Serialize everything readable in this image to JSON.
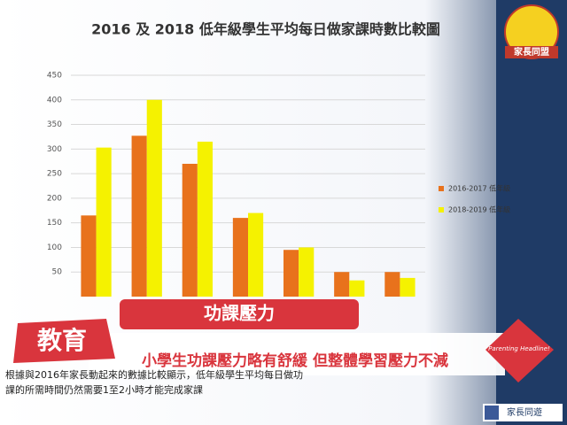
{
  "chart_data": {
    "type": "bar",
    "title": "2016 及 2018 低年級學生平均每日做家課時數比較圖",
    "categories": [
      null,
      null,
      null,
      null,
      null,
      null,
      null
    ],
    "series": [
      {
        "name": "2016-2017 低年級",
        "color": "#e8721c",
        "values": [
          165,
          327,
          270,
          160,
          95,
          50,
          50
        ]
      },
      {
        "name": "2018-2019 低年級",
        "color": "#f5f200",
        "values": [
          303,
          400,
          315,
          170,
          100,
          33,
          38
        ]
      }
    ],
    "ylim": [
      0,
      450
    ],
    "yticks": [
      50,
      100,
      150,
      200,
      250,
      300,
      350,
      400,
      450
    ],
    "grid": true,
    "legend": "right"
  },
  "overlay": {
    "logo": "家長同盟",
    "tag": "功課壓力",
    "badge": "教育",
    "headline": "小學生功課壓力略有舒緩  但整體學習壓力不減",
    "caption": [
      "根據與2016年家長動起來的數據比較顯示，低年級學生平均每日做功",
      "課的所需時間仍然需要1至2小時才能完成家課"
    ],
    "stamp": "Parenting Headline!",
    "social": "家長同遊"
  }
}
